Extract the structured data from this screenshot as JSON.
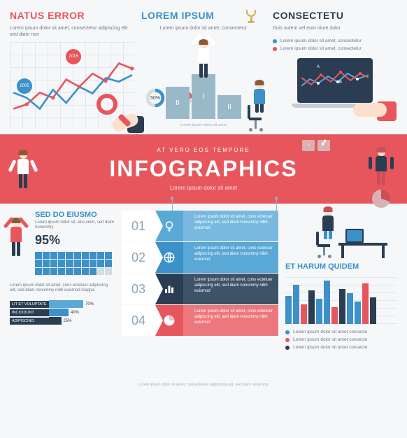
{
  "colors": {
    "red": "#e7565d",
    "blue": "#3b91c8",
    "lblue": "#5aa8d6",
    "dark": "#2a3d52",
    "grey": "#d5dde3",
    "gold": "#d4b25a"
  },
  "top": {
    "left": {
      "title": "NATUS ERROR",
      "sub": "Lorem ipsum dolor sit amet, consectetur adipiscing elit sed diam non",
      "chart": {
        "type": "line",
        "xlim": [
          0,
          9
        ],
        "ylim": [
          0,
          6
        ],
        "series": [
          {
            "color": "#e7565d",
            "width": 2,
            "points": [
              [
                0,
                1.2
              ],
              [
                1,
                1.5
              ],
              [
                2,
                2.4
              ],
              [
                3,
                2.0
              ],
              [
                4,
                3.4
              ],
              [
                5,
                2.8
              ],
              [
                6,
                3.8
              ],
              [
                7,
                3.2
              ],
              [
                8,
                4.6
              ],
              [
                9,
                4.2
              ]
            ],
            "markers": "circle"
          },
          {
            "color": "#3b91c8",
            "width": 2,
            "points": [
              [
                0,
                2.4
              ],
              [
                1,
                2.0
              ],
              [
                2,
                1.2
              ],
              [
                3,
                2.6
              ],
              [
                4,
                1.6
              ],
              [
                5,
                2.8
              ],
              [
                6,
                2.3
              ],
              [
                7,
                3.5
              ],
              [
                8,
                3.2
              ],
              [
                9,
                3.7
              ]
            ]
          }
        ],
        "bubbles": [
          {
            "x": 1,
            "y": 2.0,
            "label": "2005",
            "color": "#3b91c8"
          },
          {
            "x": 5,
            "y": 4.2,
            "label": "2015",
            "color": "#e7565d"
          }
        ]
      }
    },
    "mid": {
      "title": "LOREM IPSUM",
      "sub": "Lorem ipsum dolor sit amet, consectetur",
      "donuts": [
        {
          "value": 50,
          "color": "#3b91c8",
          "bg": "#d5dde3"
        },
        {
          "value": 25,
          "color": "#e7565d",
          "bg": "#d5dde3"
        }
      ],
      "podium": [
        {
          "rank": "II",
          "h": 46
        },
        {
          "rank": "I",
          "h": 64
        },
        {
          "rank": "II",
          "h": 34
        }
      ],
      "footer": "Lorem ipsum dolor sit amet"
    },
    "right": {
      "title": "CONSECTETU",
      "sub": "Duis autem vel eum iriure dolor",
      "legend": [
        {
          "color": "#3b91c8",
          "label": "Lorem ipsum dolor sit amet, consectetur"
        },
        {
          "color": "#e7565d",
          "label": "Lorem ipsum dolor sit amet, consectetur"
        }
      ],
      "screen": {
        "type": "line",
        "labels": [
          "A",
          "B"
        ],
        "series": [
          {
            "color": "#5aa8d6",
            "points": [
              [
                0,
                18
              ],
              [
                12,
                28
              ],
              [
                24,
                22
              ],
              [
                38,
                32
              ],
              [
                52,
                24
              ],
              [
                66,
                36
              ],
              [
                80,
                28
              ],
              [
                96,
                34
              ]
            ]
          },
          {
            "color": "#e7565d",
            "points": [
              [
                0,
                30
              ],
              [
                14,
                20
              ],
              [
                28,
                34
              ],
              [
                42,
                24
              ],
              [
                56,
                38
              ],
              [
                70,
                26
              ],
              [
                84,
                36
              ],
              [
                96,
                30
              ]
            ]
          }
        ]
      }
    }
  },
  "banner": {
    "sup": "AT VERO EOS TEMPORE",
    "main": "INFOGRAPHICS",
    "sub": "Lorem ipsum dolor sit amet"
  },
  "bottom": {
    "left": {
      "title": "SED DO EIUSMO",
      "sub": "Lorem ipsum dolor sit, wisi enim, sed diam nonummy",
      "pct": "95%",
      "grid": {
        "cols": 10,
        "rows": 3,
        "filled": 28
      },
      "para": "Lorem ipsum dolor sit amet, cons ectetuer adipiscing elit, sed diam nonummy nibh euismod magna.",
      "bars": [
        {
          "label": "LIT ET VOLUPTATE",
          "value": 70,
          "color": "#5aa8d6"
        },
        {
          "label": "INCIDIDUNT",
          "value": 40,
          "color": "#3b91c8"
        },
        {
          "label": "ADIPISCING",
          "value": 25,
          "color": "#2a3d52"
        }
      ]
    },
    "mid": {
      "steps": [
        {
          "num": "01",
          "icon": "bulb",
          "bg": "#5aa8d6",
          "tbg": "#79b9df",
          "text": "Lorem ipsum dolor sit amet, cons ectetuer adipiscing elit, sed diam nonummy nibh euismod"
        },
        {
          "num": "02",
          "icon": "globe",
          "bg": "#3b91c8",
          "tbg": "#5aa8d6",
          "text": "Lorem ipsum dolor sit amet, cons ectetuer adipiscing elit, sed diam nonummy nibh euismod"
        },
        {
          "num": "03",
          "icon": "bars",
          "bg": "#2a3d52",
          "tbg": "#3c5368",
          "text": "Lorem ipsum dolor sit amet, cons ectetuer adipiscing elit, sed diam nonummy nibh euismod"
        },
        {
          "num": "04",
          "icon": "pie",
          "bg": "#e7565d",
          "tbg": "#ec787e",
          "text": "Lorem ipsum dolor sit amet, cons ectetuer adipiscing elit, sed diam nonummy nibh euismod"
        }
      ]
    },
    "right": {
      "title": "ET HARUM QUIDEM",
      "chart": {
        "type": "bar",
        "ylim": [
          0,
          70
        ],
        "bars": [
          {
            "h": 40,
            "c": "#3b91c8"
          },
          {
            "h": 56,
            "c": "#3b91c8"
          },
          {
            "h": 28,
            "c": "#e7565d"
          },
          {
            "h": 48,
            "c": "#2a3d52"
          },
          {
            "h": 36,
            "c": "#3b91c8"
          },
          {
            "h": 62,
            "c": "#3b91c8"
          },
          {
            "h": 24,
            "c": "#e7565d"
          },
          {
            "h": 50,
            "c": "#2a3d52"
          },
          {
            "h": 44,
            "c": "#3b91c8"
          },
          {
            "h": 32,
            "c": "#3b91c8"
          },
          {
            "h": 58,
            "c": "#e7565d"
          },
          {
            "h": 38,
            "c": "#2a3d52"
          }
        ]
      },
      "legend": [
        {
          "color": "#3b91c8",
          "label": "Lorem ipsum dolor sit amet consecte"
        },
        {
          "color": "#e7565d",
          "label": "Lorem ipsum dolor sit amet consecte"
        },
        {
          "color": "#2a3d52",
          "label": "Lorem ipsum dolor sit amet consecte"
        }
      ]
    }
  },
  "footer": "Lorem ipsum dolor sit amet, consectetuer adipiscing elit, sed diam nonummy"
}
